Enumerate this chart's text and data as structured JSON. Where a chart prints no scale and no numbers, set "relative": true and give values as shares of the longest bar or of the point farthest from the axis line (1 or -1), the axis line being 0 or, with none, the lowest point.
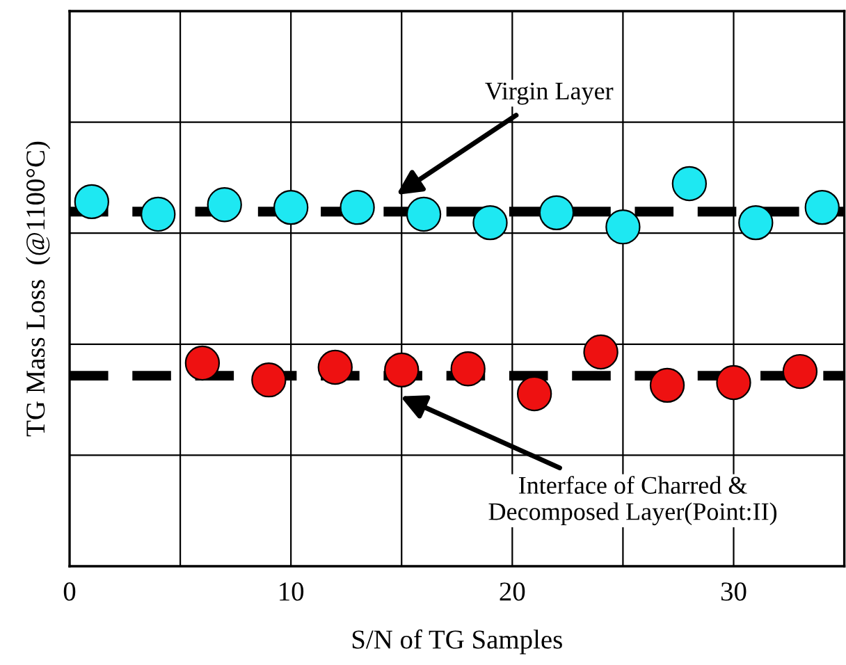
{
  "chart_data": {
    "type": "scatter",
    "relative": true,
    "xlabel": "S/N of TG Samples",
    "ylabel": "TG Mass Loss  (@1100°C)",
    "xlim": [
      0,
      35
    ],
    "xticks": [
      0,
      {
        "value": 5,
        "label": null
      },
      10,
      {
        "value": 15,
        "label": null
      },
      20,
      {
        "value": 25,
        "label": null
      },
      30,
      {
        "value": 35,
        "label": null
      }
    ],
    "tick_labels": "x",
    "grid": true,
    "marker": "circle",
    "series": [
      {
        "color": "#1ee8f2",
        "x": [
          1,
          4,
          7,
          10,
          13,
          16,
          19,
          22,
          25,
          28,
          31,
          34
        ],
        "values": [
          0.953,
          0.92,
          0.945,
          0.938,
          0.938,
          0.92,
          0.898,
          0.924,
          0.887,
          1,
          0.898,
          0.938
        ]
      },
      {
        "color": "#ee1111",
        "x": [
          6,
          9,
          12,
          15,
          18,
          21,
          24,
          27,
          30,
          33
        ],
        "values": [
          0.531,
          0.487,
          0.52,
          0.513,
          0.516,
          0.451,
          0.56,
          0.473,
          0.48,
          0.509
        ]
      }
    ],
    "ref_lines": [
      {
        "axis": "y",
        "value": 0.927,
        "color": "#000000",
        "line_style": "dashed"
      },
      {
        "axis": "y",
        "value": 0.498,
        "color": "#000000",
        "line_style": "dashed"
      }
    ],
    "annotations": [
      "Virgin Layer",
      "Interface of Charred &\nDecomposed Layer(Point:II)"
    ]
  }
}
